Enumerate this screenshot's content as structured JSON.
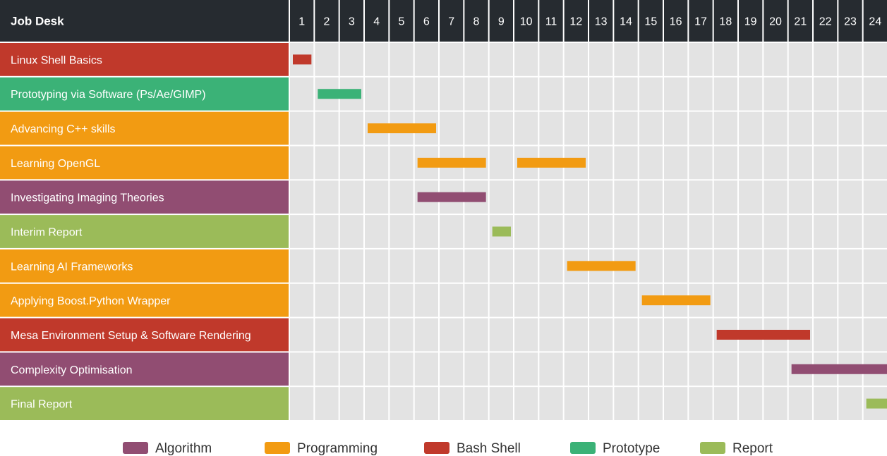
{
  "chart_data": {
    "type": "gantt",
    "header_title": "Job Desk",
    "columns": [
      "1",
      "2",
      "3",
      "4",
      "5",
      "6",
      "7",
      "8",
      "9",
      "10",
      "11",
      "12",
      "13",
      "14",
      "15",
      "16",
      "17",
      "18",
      "19",
      "20",
      "21",
      "22",
      "23",
      "24"
    ],
    "categories": {
      "algorithm": {
        "name": "Algorithm",
        "color": "#914d72"
      },
      "programming": {
        "name": "Programming",
        "color": "#f29b12"
      },
      "bash": {
        "name": "Bash Shell",
        "color": "#c0392b"
      },
      "prototype": {
        "name": "Prototype",
        "color": "#3bb277"
      },
      "report": {
        "name": "Report",
        "color": "#9bbb59"
      }
    },
    "legend_order": [
      "algorithm",
      "programming",
      "bash",
      "prototype",
      "report"
    ],
    "tasks": [
      {
        "label": "Linux Shell Basics",
        "category": "bash",
        "spans": [
          [
            1,
            1
          ]
        ]
      },
      {
        "label": "Prototyping via Software (Ps/Ae/GIMP)",
        "category": "prototype",
        "spans": [
          [
            2,
            3
          ]
        ]
      },
      {
        "label": "Advancing C++ skills",
        "category": "programming",
        "spans": [
          [
            4,
            6
          ]
        ]
      },
      {
        "label": "Learning OpenGL",
        "category": "programming",
        "spans": [
          [
            6,
            8
          ],
          [
            10,
            12
          ]
        ]
      },
      {
        "label": "Investigating Imaging Theories",
        "category": "algorithm",
        "spans": [
          [
            6,
            8
          ]
        ]
      },
      {
        "label": "Interim Report",
        "category": "report",
        "spans": [
          [
            9,
            9
          ]
        ]
      },
      {
        "label": "Learning AI Frameworks",
        "category": "programming",
        "spans": [
          [
            12,
            14
          ]
        ]
      },
      {
        "label": "Applying Boost.Python Wrapper",
        "category": "programming",
        "spans": [
          [
            15,
            17
          ]
        ]
      },
      {
        "label": "Mesa Environment Setup & Software Rendering",
        "category": "bash",
        "spans": [
          [
            18,
            21
          ]
        ]
      },
      {
        "label": "Complexity Optimisation",
        "category": "algorithm",
        "spans": [
          [
            21,
            24
          ]
        ]
      },
      {
        "label": "Final Report",
        "category": "report",
        "spans": [
          [
            24,
            24
          ]
        ]
      }
    ],
    "colors": {
      "header_bg": "#262b30",
      "cell_bg": "#e3e3e3",
      "grid_line": "#ffffff"
    }
  }
}
